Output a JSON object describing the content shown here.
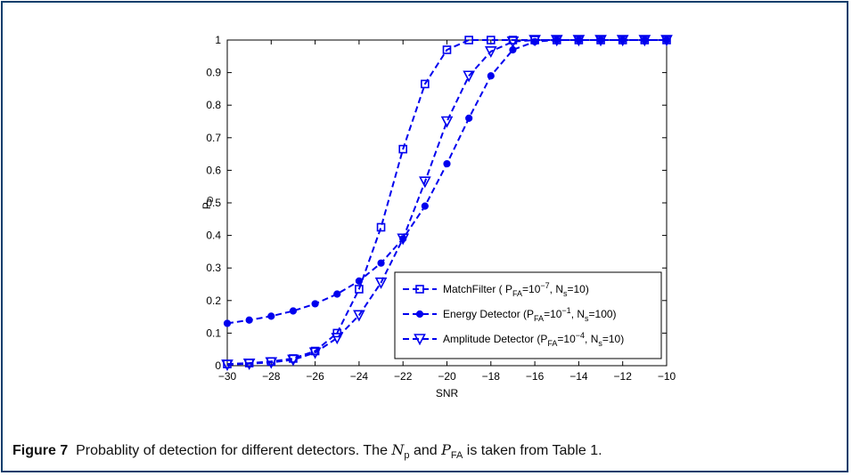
{
  "chart_data": {
    "type": "line",
    "xlabel": "SNR",
    "ylabel": "P",
    "ylabel_sub": "D",
    "xlim": [
      -30,
      -10
    ],
    "ylim": [
      0,
      1
    ],
    "xticks": [
      -30,
      -28,
      -26,
      -24,
      -22,
      -20,
      -18,
      -16,
      -14,
      -12,
      -10
    ],
    "xtick_labels": [
      "−30",
      "−28",
      "−26",
      "−24",
      "−22",
      "−20",
      "−18",
      "−16",
      "−14",
      "−12",
      "−10"
    ],
    "yticks": [
      0,
      0.1,
      0.2,
      0.3,
      0.4,
      0.5,
      0.6,
      0.7,
      0.8,
      0.9,
      1
    ],
    "ytick_labels": [
      "0",
      "0.1",
      "0.2",
      "0.3",
      "0.4",
      "0.5",
      "0.6",
      "0.7",
      "0.8",
      "0.9",
      "1"
    ],
    "legend_position": "bottom-right",
    "x": [
      -30,
      -29,
      -28,
      -27,
      -26,
      -25,
      -24,
      -23,
      -22,
      -21,
      -20,
      -19,
      -18,
      -17,
      -16,
      -15,
      -14,
      -13,
      -12,
      -11,
      -10
    ],
    "series": [
      {
        "legend_text": "MatchFilter ( P",
        "legend_sub1": "FA",
        "legend_mid": "=10",
        "legend_sup": "−7",
        "legend_mid2": ", N",
        "legend_sub2": "s",
        "legend_end": "=10)",
        "marker": "square",
        "color": "#0000ee",
        "values": [
          0.005,
          0.008,
          0.013,
          0.022,
          0.045,
          0.1,
          0.235,
          0.425,
          0.665,
          0.865,
          0.97,
          1.0,
          1.0,
          1.0,
          1.0,
          1.0,
          1.0,
          1.0,
          1.0,
          1.0,
          1.0
        ]
      },
      {
        "legend_text": "Energy Detector (P",
        "legend_sub1": "FA",
        "legend_mid": "=10",
        "legend_sup": "−1",
        "legend_mid2": ", N",
        "legend_sub2": "s",
        "legend_end": "=100)",
        "marker": "circle",
        "color": "#0000ee",
        "values": [
          0.13,
          0.14,
          0.152,
          0.168,
          0.19,
          0.22,
          0.26,
          0.315,
          0.39,
          0.49,
          0.62,
          0.76,
          0.89,
          0.97,
          0.995,
          1.0,
          1.0,
          1.0,
          1.0,
          1.0,
          1.0
        ]
      },
      {
        "legend_text": "Amplitude Detector (P",
        "legend_sub1": "FA",
        "legend_mid": "=10",
        "legend_sup": "−4",
        "legend_mid2": ", N",
        "legend_sub2": "s",
        "legend_end": "=10)",
        "marker": "triangle-down",
        "color": "#0000ee",
        "values": [
          0.003,
          0.006,
          0.01,
          0.018,
          0.04,
          0.085,
          0.155,
          0.255,
          0.39,
          0.565,
          0.75,
          0.89,
          0.965,
          0.995,
          1.0,
          1.0,
          1.0,
          1.0,
          1.0,
          1.0,
          1.0
        ]
      }
    ]
  },
  "caption": {
    "label": "Figure 7",
    "text1": "Probablity of detection for different detectors. The ",
    "np_var": "N",
    "np_sub": "p",
    "text2": " and ",
    "pfa_var": "P",
    "pfa_sub": "FA",
    "text3": " is taken from Table 1."
  }
}
